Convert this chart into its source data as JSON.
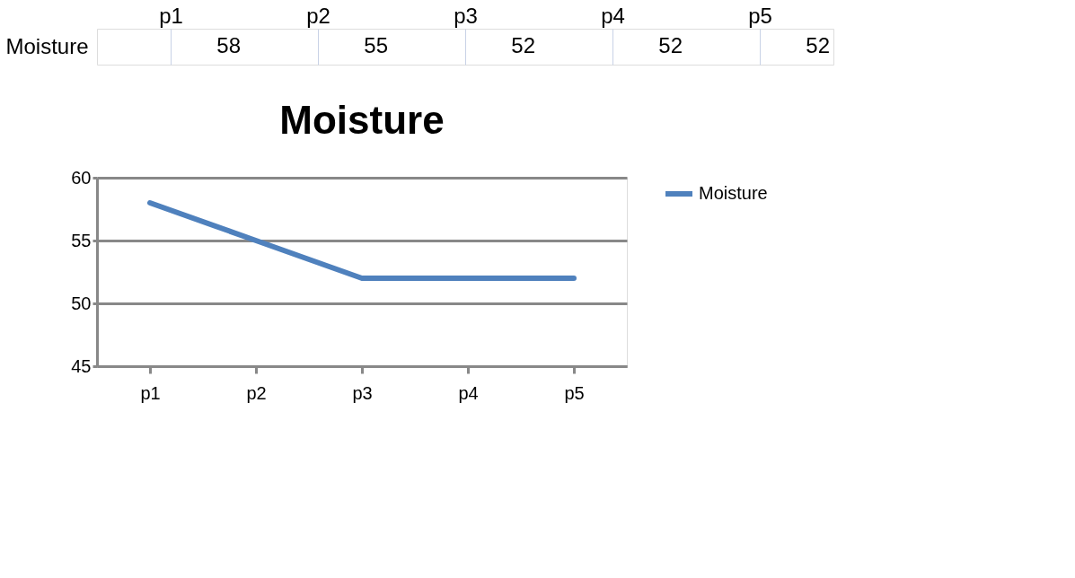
{
  "chart_data": [
    {
      "type": "other",
      "categories": [
        "p1",
        "p2",
        "p3",
        "p4",
        "p5"
      ],
      "series": [
        {
          "name": "Moisture",
          "values": [
            58,
            55,
            52,
            52,
            52
          ]
        }
      ],
      "data_labels": true
    },
    {
      "type": "line",
      "title": "Moisture",
      "categories": [
        "p1",
        "p2",
        "p3",
        "p4",
        "p5"
      ],
      "series": [
        {
          "name": "Moisture",
          "color": "#4f81bd",
          "values": [
            58,
            55,
            52,
            52,
            52
          ]
        }
      ],
      "ylim": [
        45,
        60
      ],
      "yticks": [
        45,
        50,
        55,
        60
      ],
      "grid": "y",
      "legend": "right",
      "marker": "none",
      "line_style": "solid"
    }
  ]
}
